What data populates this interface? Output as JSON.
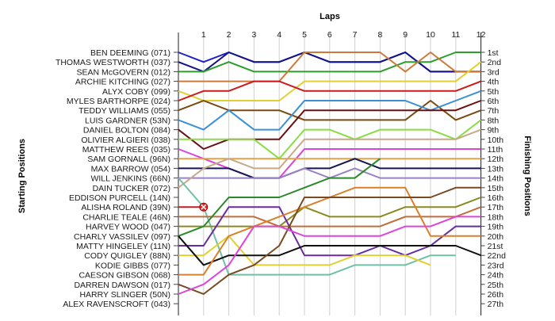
{
  "chart_data": {
    "type": "line",
    "title": "",
    "xlabel": "Laps",
    "ylabel_left": "Starting Positions",
    "ylabel_right": "Finishing Positions",
    "laps": [
      1,
      2,
      3,
      4,
      5,
      6,
      7,
      8,
      9,
      10,
      11,
      12
    ],
    "finishing_labels": [
      "1st",
      "2nd",
      "3rd",
      "4th",
      "5th",
      "6th",
      "7th",
      "8th",
      "9th",
      "10th",
      "11th",
      "12th",
      "13th",
      "14th",
      "15th",
      "16th",
      "17th",
      "18th",
      "19th",
      "20th",
      "21st",
      "22nd",
      "23rd",
      "24th",
      "25th",
      "26th",
      "27th"
    ],
    "grid": "vertical",
    "series": [
      {
        "name": "BEN DEEMING (071)",
        "color": "#1f1fcf",
        "positions": [
          1,
          2,
          1,
          2,
          2,
          1,
          2,
          2,
          2,
          1,
          3,
          3,
          3
        ]
      },
      {
        "name": "THOMAS WESTWORTH (037)",
        "color": "#13128a",
        "positions": [
          2,
          3,
          1,
          2,
          2,
          1,
          2,
          2,
          2,
          1,
          3,
          3,
          3
        ]
      },
      {
        "name": "SEAN McGOVERN (012)",
        "color": "#2b9e2b",
        "positions": [
          3,
          3,
          2,
          3,
          3,
          3,
          3,
          3,
          3,
          2,
          2,
          1,
          1
        ]
      },
      {
        "name": "ARCHIE KITCHING (027)",
        "color": "#cc7a3a",
        "positions": [
          4,
          4,
          4,
          4,
          4,
          1,
          1,
          1,
          1,
          3,
          1,
          3,
          3
        ]
      },
      {
        "name": "ALYX COBY (099)",
        "color": "#e0d030",
        "positions": [
          5,
          6,
          6,
          6,
          6,
          4,
          4,
          4,
          4,
          4,
          4,
          4,
          2
        ]
      },
      {
        "name": "MYLES BARTHORPE (024)",
        "color": "#cc1a1a",
        "positions": [
          6,
          5,
          5,
          4,
          4,
          5,
          5,
          5,
          5,
          5,
          5,
          5,
          4
        ]
      },
      {
        "name": "TEDDY WILLIAMS (055)",
        "color": "#7a4a10",
        "positions": [
          7,
          6,
          7,
          7,
          7,
          8,
          8,
          8,
          8,
          8,
          6,
          8,
          7
        ]
      },
      {
        "name": "LUIS GARDNER (53N)",
        "color": "#3a90d8",
        "positions": [
          8,
          9,
          7,
          9,
          9,
          6,
          6,
          6,
          6,
          6,
          7,
          6,
          5
        ]
      },
      {
        "name": "DANIEL BOLTON (084)",
        "color": "#6a1010",
        "positions": [
          9,
          11,
          10,
          10,
          10,
          7,
          7,
          7,
          7,
          7,
          7,
          7,
          6
        ]
      },
      {
        "name": "OLIVIER ALGIERI (038)",
        "color": "#88dd44",
        "positions": [
          10,
          10,
          10,
          10,
          12,
          9,
          9,
          10,
          9,
          9,
          9,
          10,
          8
        ]
      },
      {
        "name": "MATTHEW REES (035)",
        "color": "#dd44dd",
        "positions": [
          11,
          12,
          13,
          14,
          14,
          11,
          11,
          11,
          11,
          11,
          11,
          11,
          11
        ]
      },
      {
        "name": "SAM GORNALL (96N)",
        "color": "#e2a24a",
        "positions": [
          12,
          12,
          12,
          12,
          12,
          12,
          12,
          12,
          12,
          12,
          12,
          12,
          12
        ]
      },
      {
        "name": "MAX BARROW (054)",
        "color": "#161650",
        "positions": [
          13,
          13,
          13,
          14,
          14,
          13,
          13,
          12,
          13,
          13,
          13,
          13,
          13
        ]
      },
      {
        "name": "WILL JENKINS (66N)",
        "color": "#9a82c6",
        "positions": [
          14,
          14,
          14,
          14,
          14,
          13,
          14,
          13,
          14,
          14,
          14,
          14,
          14
        ]
      },
      {
        "name": "DAIN TUCKER (072)",
        "color": "#c8a888",
        "positions": [
          15,
          13,
          12,
          13,
          13,
          10,
          10,
          10,
          10,
          10,
          10,
          10,
          9
        ]
      },
      {
        "name": "EDDISON PURCELL (14N)",
        "color": "#70c0a8",
        "positions": [
          14,
          17,
          24,
          24,
          24,
          24,
          24,
          23,
          23,
          23,
          22,
          22
        ]
      },
      {
        "name": "ALISHA ROLAND (39N)",
        "color": "#cc1a1a",
        "positions": [
          17,
          17
        ]
      },
      {
        "name": "CHARLIE TEALE (46N)",
        "color": "#c06e3a",
        "positions": [
          18,
          18,
          18,
          18,
          19,
          19,
          19,
          19,
          19,
          18,
          18,
          18,
          17
        ]
      },
      {
        "name": "HARVEY WOOD (047)",
        "color": "#8a8a20",
        "positions": [
          19,
          19,
          19,
          19,
          19,
          17,
          18,
          18,
          18,
          17,
          17,
          17,
          16
        ]
      },
      {
        "name": "CHARLY VASSILEV (097)",
        "color": "#2a8a2a",
        "positions": [
          20,
          19,
          16,
          16,
          16,
          15,
          14,
          14,
          12
        ]
      },
      {
        "name": "MATTY HINGELEY (11N)",
        "color": "#6a2aa0",
        "positions": [
          21,
          21,
          17,
          17,
          17,
          22,
          22,
          22,
          21,
          22,
          21,
          19,
          19
        ]
      },
      {
        "name": "CODY QUIGLEY (88N)",
        "color": "#e0d030",
        "positions": [
          22,
          22,
          20,
          23,
          23,
          23,
          23,
          22,
          22,
          22,
          23
        ]
      },
      {
        "name": "KODIE GIBBS (077)",
        "color": "#111111",
        "positions": [
          20,
          23,
          22,
          22,
          22,
          21,
          21,
          21,
          21,
          21,
          21,
          21,
          22
        ]
      },
      {
        "name": "CAESON GIBSON (068)",
        "color": "#d9802a",
        "positions": [
          24,
          24,
          20,
          19,
          18,
          17,
          16,
          15,
          15,
          15,
          20,
          20,
          20
        ]
      },
      {
        "name": "DARREN DAWSON (017)",
        "color": "#7a4a20",
        "positions": [
          25,
          26,
          24,
          23,
          21,
          16,
          16,
          16,
          16,
          16,
          16,
          15,
          15
        ]
      },
      {
        "name": "HARRY SLINGER (50N)",
        "color": "#dd44dd",
        "positions": [
          26,
          25,
          23,
          19,
          19,
          20,
          20,
          20,
          20,
          19,
          19,
          18,
          18
        ]
      },
      {
        "name": "ALEX RAVENSCROFT (043)",
        "color": "#111111",
        "positions": []
      }
    ]
  }
}
